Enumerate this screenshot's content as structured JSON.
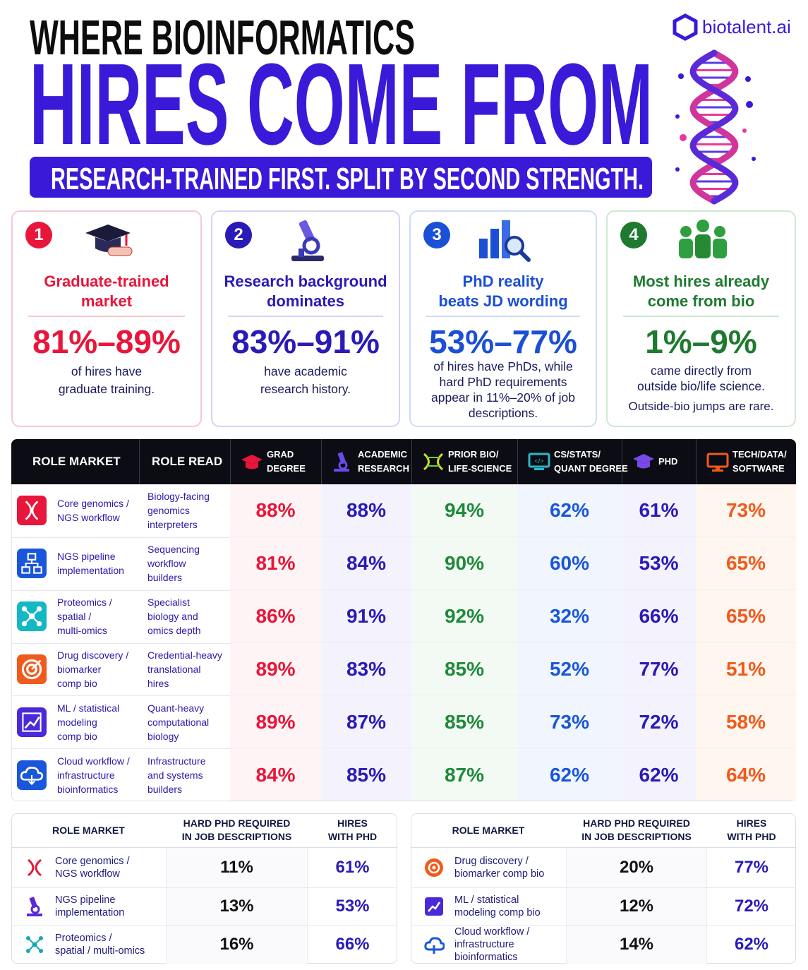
{
  "header": {
    "title_line1": "WHERE BIOINFORMATICS",
    "title_line2": "HIRES COME FROM",
    "subtitle": "RESEARCH-TRAINED FIRST. SPLIT BY SECOND STRENGTH.",
    "brand": "biotalent.ai"
  },
  "cards": [
    {
      "number": "1",
      "title": [
        "Graduate-trained",
        "market"
      ],
      "stat": "81%–89%",
      "text": [
        "of hires have",
        "graduate training."
      ]
    },
    {
      "number": "2",
      "title": [
        "Research background",
        "dominates"
      ],
      "stat": "83%–91%",
      "text": [
        "have academic",
        "research history."
      ]
    },
    {
      "number": "3",
      "title": [
        "PhD reality",
        "beats JD wording"
      ],
      "stat": "53%–77%",
      "text": [
        "of hires have PhDs, while",
        "hard PhD requirements",
        "appear in 11%–20% of job",
        "descriptions."
      ]
    },
    {
      "number": "4",
      "title": [
        "Most hires already",
        "come from bio"
      ],
      "stat": "1%–9%",
      "text": [
        "came directly from",
        "outside bio/life science."
      ],
      "note": "Outside-bio jumps are rare."
    }
  ],
  "main_table": {
    "columns": [
      [
        "ROLE MARKET"
      ],
      [
        "ROLE READ"
      ],
      [
        "GRAD",
        "DEGREE"
      ],
      [
        "ACADEMIC",
        "RESEARCH"
      ],
      [
        "PRIOR BIO/",
        "LIFE-SCIENCE"
      ],
      [
        "CS/STATS/",
        "QUANT DEGREE"
      ],
      [
        "PHD"
      ],
      [
        "TECH/DATA/",
        "SOFTWARE"
      ]
    ],
    "rows": [
      {
        "role": [
          "Core genomics /",
          "NGS workflow"
        ],
        "read": [
          "Biology-facing",
          "genomics",
          "interpreters"
        ],
        "values": [
          "88%",
          "88%",
          "94%",
          "62%",
          "61%",
          "73%"
        ]
      },
      {
        "role": [
          "NGS pipeline",
          "implementation"
        ],
        "read": [
          "Sequencing",
          "workflow",
          "builders"
        ],
        "values": [
          "81%",
          "84%",
          "90%",
          "60%",
          "53%",
          "65%"
        ]
      },
      {
        "role": [
          "Proteomics /",
          "spatial /",
          "multi-omics"
        ],
        "read": [
          "Specialist",
          "biology and",
          "omics depth"
        ],
        "values": [
          "86%",
          "91%",
          "92%",
          "32%",
          "66%",
          "65%"
        ]
      },
      {
        "role": [
          "Drug discovery /",
          "biomarker",
          "comp bio"
        ],
        "read": [
          "Credential-heavy",
          "translational",
          "hires"
        ],
        "values": [
          "89%",
          "83%",
          "85%",
          "52%",
          "77%",
          "51%"
        ]
      },
      {
        "role": [
          "ML / statistical",
          "modeling",
          "comp bio"
        ],
        "read": [
          "Quant-heavy",
          "computational",
          "biology"
        ],
        "values": [
          "89%",
          "87%",
          "85%",
          "73%",
          "72%",
          "58%"
        ]
      },
      {
        "role": [
          "Cloud workflow /",
          "infrastructure",
          "bioinformatics"
        ],
        "read": [
          "Infrastructure",
          "and systems",
          "builders"
        ],
        "values": [
          "84%",
          "85%",
          "87%",
          "62%",
          "62%",
          "64%"
        ]
      }
    ]
  },
  "bottom_tables": [
    {
      "columns": [
        [
          "ROLE MARKET"
        ],
        [
          "HARD PHD REQUIRED",
          "IN JOB DESCRIPTIONS"
        ],
        [
          "HIRES",
          "WITH PHD"
        ]
      ],
      "rows": [
        {
          "role": [
            "Core genomics /",
            "NGS workflow"
          ],
          "values": [
            "11%",
            "61%"
          ]
        },
        {
          "role": [
            "NGS pipeline",
            "implementation"
          ],
          "values": [
            "13%",
            "53%"
          ]
        },
        {
          "role": [
            "Proteomics /",
            "spatial / multi-omics"
          ],
          "values": [
            "16%",
            "66%"
          ]
        }
      ]
    },
    {
      "columns": [
        [
          "ROLE MARKET"
        ],
        [
          "HARD PHD REQUIRED",
          "IN JOB DESCRIPTIONS"
        ],
        [
          "HIRES",
          "WITH PHD"
        ]
      ],
      "rows": [
        {
          "role": [
            "Drug discovery /",
            "biomarker comp bio"
          ],
          "values": [
            "20%",
            "77%"
          ]
        },
        {
          "role": [
            "ML / statistical",
            "modeling comp bio"
          ],
          "values": [
            "12%",
            "72%"
          ]
        },
        {
          "role": [
            "Cloud workflow /",
            "infrastructure",
            "bioinformatics"
          ],
          "values": [
            "14%",
            "62%"
          ]
        }
      ]
    }
  ]
}
